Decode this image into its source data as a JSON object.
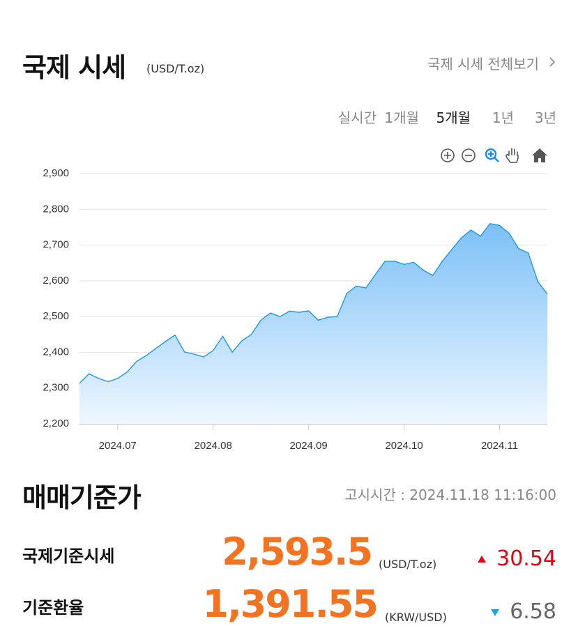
{
  "header": {
    "title": "국제 시세",
    "unit": "(USD/T.oz)",
    "link": "국제 시세 전체보기"
  },
  "tabs": {
    "items": [
      "실시간",
      "1개월",
      "5개월",
      "1년",
      "3년"
    ],
    "active": 2
  },
  "chart_data": {
    "type": "area",
    "color": "#2196e8",
    "categories": [
      null,
      null,
      null,
      null,
      "2024.07",
      null,
      null,
      null,
      null,
      null,
      null,
      null,
      null,
      null,
      "2024.08",
      null,
      null,
      null,
      null,
      null,
      null,
      null,
      null,
      null,
      "2024.09",
      null,
      null,
      null,
      null,
      null,
      null,
      null,
      null,
      null,
      "2024.10",
      null,
      null,
      null,
      null,
      null,
      null,
      null,
      null,
      null,
      "2024.11",
      null,
      null,
      null,
      null,
      null
    ],
    "values": [
      2313,
      2340,
      2327,
      2318,
      2327,
      2345,
      2375,
      2391,
      2411,
      2430,
      2448,
      2401,
      2395,
      2387,
      2405,
      2445,
      2400,
      2432,
      2450,
      2490,
      2510,
      2500,
      2515,
      2512,
      2516,
      2490,
      2498,
      2500,
      2565,
      2585,
      2580,
      2618,
      2655,
      2655,
      2646,
      2652,
      2630,
      2615,
      2655,
      2688,
      2720,
      2742,
      2725,
      2760,
      2755,
      2733,
      2690,
      2678,
      2598,
      2563
    ],
    "ylim": [
      2200,
      2900
    ],
    "yticks": [
      {
        "value": 2200,
        "label": "2,200"
      },
      {
        "value": 2300,
        "label": "2,300"
      },
      {
        "value": 2400,
        "label": "2,400"
      },
      {
        "value": 2500,
        "label": "2,500"
      },
      {
        "value": 2600,
        "label": "2,600"
      },
      {
        "value": 2700,
        "label": "2,700"
      },
      {
        "value": 2800,
        "label": "2,800"
      },
      {
        "value": 2900,
        "label": "2,900"
      }
    ],
    "grid": true
  },
  "prices": {
    "title": "매매기준가",
    "notice": "고시시간 : 2024.11.18 11:16:00",
    "rows": [
      {
        "label": "국제기준시세",
        "value": "2,593.5",
        "unit": "(USD/T.oz)",
        "change": "30.54"
      },
      {
        "label": "기준환율",
        "value": "1,391.55",
        "unit": "(KRW/USD)",
        "change": "6.58"
      }
    ]
  }
}
